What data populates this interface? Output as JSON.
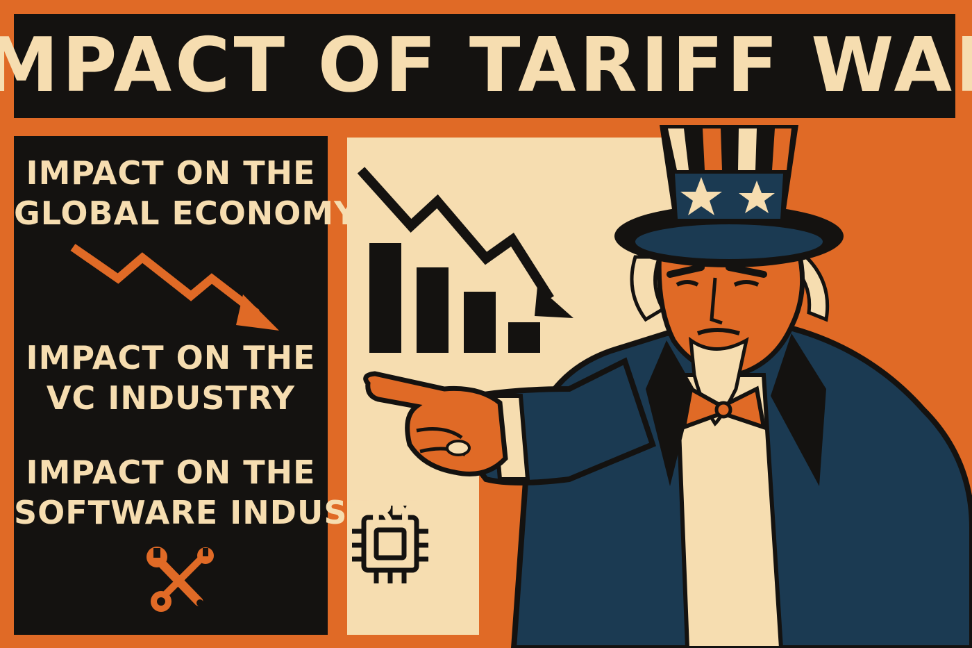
{
  "title": "IMPACT OF TARIFF WAR",
  "sections": [
    {
      "line1": "IMPACT ON THE",
      "line2": "GLOBAL ECONOMY",
      "icon": "downtrend-arrow-icon"
    },
    {
      "line1": "IMPACT ON THE",
      "line2": "VC INDUSTRY",
      "icon": "none"
    },
    {
      "line1": "IMPACT ON THE",
      "line2": "SOFTWARE INDUSTRY",
      "icon": "wrench-screwdriver-icon"
    }
  ],
  "illustration": {
    "figure": "uncle-sam-pointing",
    "chart_icon": "declining-bar-chart-icon",
    "chip_icon": "microchip-icon"
  },
  "colors": {
    "orange": "#e06a26",
    "black": "#141210",
    "cream": "#f6ddb0",
    "navy": "#1b3a52"
  }
}
